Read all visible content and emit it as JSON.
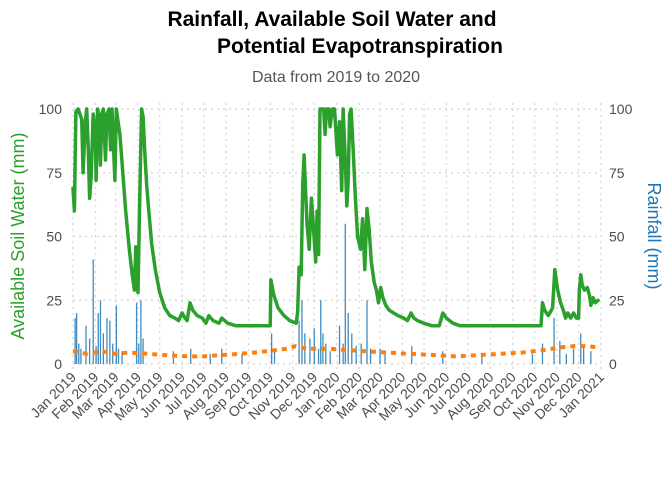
{
  "chart_data": {
    "type": "line",
    "title": [
      "Rainfall, Available Soil Water and",
      "Potential Evapotranspiration"
    ],
    "subtitle": "Data from 2019 to 2020",
    "ylabel_left": "Available Soil Water (mm)",
    "ylabel_right": "Rainfall (mm)",
    "ylim": [
      0,
      100
    ],
    "yticks": [
      0,
      25,
      50,
      75,
      100
    ],
    "xlim": [
      "2019-01-01",
      "2021-01-01"
    ],
    "x_ticks": [
      {
        "date": "2019-01-01",
        "label": "Jan 2019"
      },
      {
        "date": "2019-02-01",
        "label": "Feb 2019"
      },
      {
        "date": "2019-03-01",
        "label": "Mar 2019"
      },
      {
        "date": "2019-04-01",
        "label": "Apr 2019"
      },
      {
        "date": "2019-05-01",
        "label": "May 2019"
      },
      {
        "date": "2019-06-01",
        "label": "Jun 2019"
      },
      {
        "date": "2019-07-01",
        "label": "Jul 2019"
      },
      {
        "date": "2019-08-01",
        "label": "Aug 2019"
      },
      {
        "date": "2019-09-01",
        "label": "Sep 2019"
      },
      {
        "date": "2019-10-01",
        "label": "Oct 2019"
      },
      {
        "date": "2019-11-01",
        "label": "Nov 2019"
      },
      {
        "date": "2019-12-01",
        "label": "Dec 2019"
      },
      {
        "date": "2020-01-01",
        "label": "Jan 2020"
      },
      {
        "date": "2020-02-01",
        "label": "Feb 2020"
      },
      {
        "date": "2020-03-01",
        "label": "Mar 2020"
      },
      {
        "date": "2020-04-01",
        "label": "Apr 2020"
      },
      {
        "date": "2020-05-01",
        "label": "May 2020"
      },
      {
        "date": "2020-06-01",
        "label": "Jun 2020"
      },
      {
        "date": "2020-07-01",
        "label": "Jul 2020"
      },
      {
        "date": "2020-08-01",
        "label": "Aug 2020"
      },
      {
        "date": "2020-09-01",
        "label": "Sep 2020"
      },
      {
        "date": "2020-10-01",
        "label": "Oct 2020"
      },
      {
        "date": "2020-11-01",
        "label": "Nov 2020"
      },
      {
        "date": "2020-12-01",
        "label": "Dec 2020"
      },
      {
        "date": "2021-01-01",
        "label": "Jan 2021"
      }
    ],
    "colors": {
      "soil_water": "#2ca02c",
      "rainfall": "#1f77b4",
      "pet": "#ff7f0e",
      "left_axis_title": "#2ca02c",
      "right_axis_title": "#1f77b4"
    },
    "grid": true,
    "legend": "none",
    "series": [
      {
        "key": "soil_water",
        "type": "line",
        "points": [
          [
            "2019-01-01",
            69
          ],
          [
            "2019-01-03",
            60
          ],
          [
            "2019-01-05",
            99
          ],
          [
            "2019-01-08",
            100
          ],
          [
            "2019-01-13",
            96
          ],
          [
            "2019-01-15",
            75
          ],
          [
            "2019-01-18",
            95
          ],
          [
            "2019-01-20",
            100
          ],
          [
            "2019-01-22",
            85
          ],
          [
            "2019-01-24",
            65
          ],
          [
            "2019-01-26",
            73
          ],
          [
            "2019-01-29",
            98
          ],
          [
            "2019-02-01",
            90
          ],
          [
            "2019-02-02",
            72
          ],
          [
            "2019-02-04",
            100
          ],
          [
            "2019-02-06",
            97
          ],
          [
            "2019-02-08",
            78
          ],
          [
            "2019-02-10",
            98
          ],
          [
            "2019-02-12",
            100
          ],
          [
            "2019-02-15",
            80
          ],
          [
            "2019-02-17",
            98
          ],
          [
            "2019-02-20",
            100
          ],
          [
            "2019-02-22",
            84
          ],
          [
            "2019-02-24",
            100
          ],
          [
            "2019-02-26",
            86
          ],
          [
            "2019-02-28",
            72
          ],
          [
            "2019-03-02",
            100
          ],
          [
            "2019-03-07",
            90
          ],
          [
            "2019-03-11",
            75
          ],
          [
            "2019-03-15",
            60
          ],
          [
            "2019-03-20",
            45
          ],
          [
            "2019-03-24",
            35
          ],
          [
            "2019-03-27",
            29
          ],
          [
            "2019-03-29",
            46
          ],
          [
            "2019-04-01",
            28
          ],
          [
            "2019-04-03",
            60
          ],
          [
            "2019-04-06",
            100
          ],
          [
            "2019-04-08",
            97
          ],
          [
            "2019-04-10",
            85
          ],
          [
            "2019-04-13",
            70
          ],
          [
            "2019-04-16",
            60
          ],
          [
            "2019-04-20",
            47
          ],
          [
            "2019-04-25",
            37
          ],
          [
            "2019-05-01",
            28
          ],
          [
            "2019-05-08",
            22
          ],
          [
            "2019-05-15",
            19
          ],
          [
            "2019-05-22",
            18
          ],
          [
            "2019-05-27",
            17
          ],
          [
            "2019-06-01",
            20
          ],
          [
            "2019-06-05",
            18
          ],
          [
            "2019-06-08",
            17
          ],
          [
            "2019-06-12",
            24
          ],
          [
            "2019-06-16",
            21
          ],
          [
            "2019-06-22",
            19
          ],
          [
            "2019-06-29",
            18
          ],
          [
            "2019-07-04",
            16
          ],
          [
            "2019-07-08",
            19
          ],
          [
            "2019-07-14",
            17
          ],
          [
            "2019-07-22",
            16
          ],
          [
            "2019-07-26",
            18
          ],
          [
            "2019-08-03",
            16
          ],
          [
            "2019-08-15",
            15
          ],
          [
            "2019-09-01",
            15
          ],
          [
            "2019-09-20",
            15
          ],
          [
            "2019-10-01",
            15
          ],
          [
            "2019-10-02",
            33
          ],
          [
            "2019-10-06",
            27
          ],
          [
            "2019-10-12",
            22
          ],
          [
            "2019-10-20",
            19
          ],
          [
            "2019-10-28",
            17
          ],
          [
            "2019-11-06",
            16
          ],
          [
            "2019-11-08",
            20
          ],
          [
            "2019-11-10",
            38
          ],
          [
            "2019-11-13",
            35
          ],
          [
            "2019-11-15",
            70
          ],
          [
            "2019-11-17",
            82
          ],
          [
            "2019-11-19",
            68
          ],
          [
            "2019-11-21",
            55
          ],
          [
            "2019-11-24",
            45
          ],
          [
            "2019-11-27",
            65
          ],
          [
            "2019-11-30",
            53
          ],
          [
            "2019-12-03",
            40
          ],
          [
            "2019-12-05",
            60
          ],
          [
            "2019-12-07",
            43
          ],
          [
            "2019-12-09",
            100
          ],
          [
            "2019-12-14",
            100
          ],
          [
            "2019-12-16",
            90
          ],
          [
            "2019-12-18",
            100
          ],
          [
            "2019-12-21",
            100
          ],
          [
            "2019-12-23",
            93
          ],
          [
            "2019-12-26",
            100
          ],
          [
            "2019-12-29",
            100
          ],
          [
            "2020-01-02",
            82
          ],
          [
            "2020-01-05",
            95
          ],
          [
            "2020-01-08",
            68
          ],
          [
            "2020-01-10",
            100
          ],
          [
            "2020-01-13",
            80
          ],
          [
            "2020-01-15",
            62
          ],
          [
            "2020-01-17",
            72
          ],
          [
            "2020-01-19",
            98
          ],
          [
            "2020-01-21",
            100
          ],
          [
            "2020-01-24",
            83
          ],
          [
            "2020-01-27",
            65
          ],
          [
            "2020-01-30",
            50
          ],
          [
            "2020-02-03",
            45
          ],
          [
            "2020-02-06",
            57
          ],
          [
            "2020-02-09",
            37
          ],
          [
            "2020-02-12",
            61
          ],
          [
            "2020-02-15",
            53
          ],
          [
            "2020-02-18",
            40
          ],
          [
            "2020-02-22",
            32
          ],
          [
            "2020-02-25",
            29
          ],
          [
            "2020-02-28",
            24
          ],
          [
            "2020-03-02",
            30
          ],
          [
            "2020-03-05",
            26
          ],
          [
            "2020-03-09",
            23
          ],
          [
            "2020-03-14",
            21
          ],
          [
            "2020-03-20",
            20
          ],
          [
            "2020-03-26",
            19
          ],
          [
            "2020-04-03",
            18
          ],
          [
            "2020-04-08",
            17
          ],
          [
            "2020-04-13",
            20
          ],
          [
            "2020-04-17",
            18
          ],
          [
            "2020-04-22",
            17
          ],
          [
            "2020-05-01",
            16
          ],
          [
            "2020-05-12",
            15
          ],
          [
            "2020-05-22",
            15
          ],
          [
            "2020-05-27",
            20
          ],
          [
            "2020-06-01",
            18
          ],
          [
            "2020-06-10",
            16
          ],
          [
            "2020-06-20",
            15
          ],
          [
            "2020-07-15",
            15
          ],
          [
            "2020-08-15",
            15
          ],
          [
            "2020-09-15",
            15
          ],
          [
            "2020-10-10",
            15
          ],
          [
            "2020-10-12",
            24
          ],
          [
            "2020-10-15",
            21
          ],
          [
            "2020-10-20",
            19
          ],
          [
            "2020-10-26",
            22
          ],
          [
            "2020-10-29",
            37
          ],
          [
            "2020-11-02",
            29
          ],
          [
            "2020-11-06",
            24
          ],
          [
            "2020-11-10",
            21
          ],
          [
            "2020-11-13",
            18
          ],
          [
            "2020-11-16",
            20
          ],
          [
            "2020-11-20",
            18
          ],
          [
            "2020-11-24",
            20
          ],
          [
            "2020-11-28",
            18
          ],
          [
            "2020-12-01",
            18
          ],
          [
            "2020-12-02",
            29
          ],
          [
            "2020-12-04",
            35
          ],
          [
            "2020-12-06",
            31
          ],
          [
            "2020-12-09",
            29
          ],
          [
            "2020-12-13",
            30
          ],
          [
            "2020-12-16",
            27
          ],
          [
            "2020-12-18",
            23
          ],
          [
            "2020-12-21",
            26
          ],
          [
            "2020-12-24",
            24
          ],
          [
            "2020-12-28",
            25
          ]
        ]
      },
      {
        "key": "pet",
        "type": "line",
        "dashed": true,
        "points": [
          [
            "2019-01-01",
            5
          ],
          [
            "2019-01-20",
            4
          ],
          [
            "2019-02-10",
            5
          ],
          [
            "2019-03-01",
            4
          ],
          [
            "2019-03-20",
            4.5
          ],
          [
            "2019-04-15",
            4
          ],
          [
            "2019-05-10",
            3.5
          ],
          [
            "2019-06-10",
            3
          ],
          [
            "2019-07-01",
            3
          ],
          [
            "2019-07-25",
            3.5
          ],
          [
            "2019-08-20",
            4
          ],
          [
            "2019-09-10",
            4.5
          ],
          [
            "2019-10-10",
            5.5
          ],
          [
            "2019-10-25",
            6
          ],
          [
            "2019-11-05",
            7
          ],
          [
            "2019-11-20",
            6
          ],
          [
            "2019-12-05",
            6
          ],
          [
            "2019-12-20",
            6
          ],
          [
            "2020-01-15",
            5.5
          ],
          [
            "2020-02-10",
            5
          ],
          [
            "2020-03-10",
            4.5
          ],
          [
            "2020-04-10",
            4
          ],
          [
            "2020-05-15",
            3.5
          ],
          [
            "2020-06-15",
            3
          ],
          [
            "2020-07-15",
            3.5
          ],
          [
            "2020-08-15",
            4
          ],
          [
            "2020-09-15",
            4.5
          ],
          [
            "2020-10-15",
            5.5
          ],
          [
            "2020-11-05",
            6.5
          ],
          [
            "2020-11-25",
            7
          ],
          [
            "2020-12-10",
            7
          ],
          [
            "2020-12-31",
            6.5
          ]
        ]
      },
      {
        "key": "rainfall",
        "type": "bar",
        "points": [
          [
            "2019-01-04",
            18
          ],
          [
            "2019-01-06",
            20
          ],
          [
            "2019-01-09",
            8
          ],
          [
            "2019-01-12",
            6
          ],
          [
            "2019-01-19",
            15
          ],
          [
            "2019-01-24",
            10
          ],
          [
            "2019-01-29",
            41
          ],
          [
            "2019-02-02",
            7
          ],
          [
            "2019-02-05",
            20
          ],
          [
            "2019-02-08",
            25
          ],
          [
            "2019-02-12",
            12
          ],
          [
            "2019-02-17",
            18
          ],
          [
            "2019-02-21",
            17
          ],
          [
            "2019-02-25",
            8
          ],
          [
            "2019-03-02",
            23
          ],
          [
            "2019-03-05",
            6
          ],
          [
            "2019-03-10",
            5
          ],
          [
            "2019-03-30",
            24
          ],
          [
            "2019-04-02",
            8
          ],
          [
            "2019-04-05",
            25
          ],
          [
            "2019-04-08",
            10
          ],
          [
            "2019-05-20",
            5
          ],
          [
            "2019-06-13",
            6
          ],
          [
            "2019-07-10",
            4
          ],
          [
            "2019-07-26",
            6
          ],
          [
            "2019-08-23",
            4
          ],
          [
            "2019-10-03",
            12
          ],
          [
            "2019-10-07",
            6
          ],
          [
            "2019-11-10",
            17
          ],
          [
            "2019-11-14",
            25
          ],
          [
            "2019-11-18",
            12
          ],
          [
            "2019-11-25",
            10
          ],
          [
            "2019-12-01",
            14
          ],
          [
            "2019-12-07",
            6
          ],
          [
            "2019-12-10",
            25
          ],
          [
            "2019-12-13",
            12
          ],
          [
            "2019-12-17",
            8
          ],
          [
            "2019-12-23",
            5
          ],
          [
            "2020-01-05",
            15
          ],
          [
            "2020-01-10",
            8
          ],
          [
            "2020-01-13",
            55
          ],
          [
            "2020-01-17",
            20
          ],
          [
            "2020-01-22",
            12
          ],
          [
            "2020-01-28",
            7
          ],
          [
            "2020-02-04",
            8
          ],
          [
            "2020-02-12",
            25
          ],
          [
            "2020-02-17",
            6
          ],
          [
            "2020-03-01",
            6
          ],
          [
            "2020-03-08",
            4
          ],
          [
            "2020-04-14",
            7
          ],
          [
            "2020-05-27",
            5
          ],
          [
            "2020-07-20",
            3
          ],
          [
            "2020-09-28",
            4
          ],
          [
            "2020-10-12",
            8
          ],
          [
            "2020-10-28",
            18
          ],
          [
            "2020-11-05",
            9
          ],
          [
            "2020-11-14",
            4
          ],
          [
            "2020-11-24",
            6
          ],
          [
            "2020-12-04",
            12
          ],
          [
            "2020-12-08",
            7
          ],
          [
            "2020-12-18",
            5
          ]
        ]
      }
    ]
  }
}
